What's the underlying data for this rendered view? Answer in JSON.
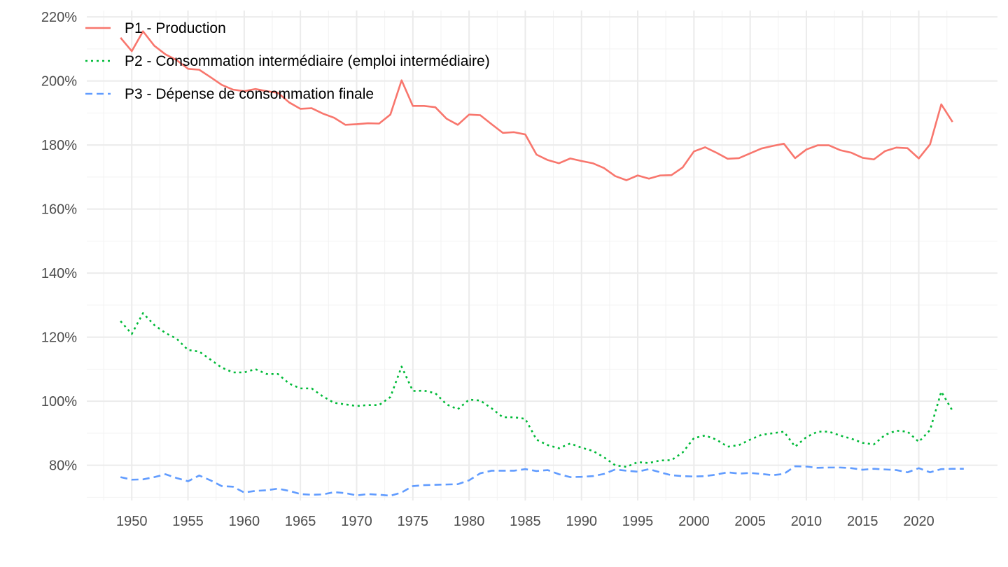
{
  "chart_data": {
    "type": "line",
    "title": "",
    "xlabel": "",
    "ylabel": "",
    "xlim": [
      1946,
      2027
    ],
    "ylim": [
      69,
      222
    ],
    "grid": true,
    "legend_position": "top-left",
    "x_ticks": [
      1950,
      1955,
      1960,
      1965,
      1970,
      1975,
      1980,
      1985,
      1990,
      1995,
      2000,
      2005,
      2010,
      2015,
      2020
    ],
    "x_tick_labels": [
      "1950",
      "1955",
      "1960",
      "1965",
      "1970",
      "1975",
      "1980",
      "1985",
      "1990",
      "1995",
      "2000",
      "2005",
      "2010",
      "2015",
      "2020"
    ],
    "y_ticks": [
      80,
      100,
      120,
      140,
      160,
      180,
      200,
      220
    ],
    "y_tick_labels": [
      "80%",
      "100%",
      "120%",
      "140%",
      "160%",
      "180%",
      "200%",
      "220%"
    ],
    "x": [
      1949,
      1950,
      1951,
      1952,
      1953,
      1954,
      1955,
      1956,
      1957,
      1958,
      1959,
      1960,
      1961,
      1962,
      1963,
      1964,
      1965,
      1966,
      1967,
      1968,
      1969,
      1970,
      1971,
      1972,
      1973,
      1974,
      1975,
      1976,
      1977,
      1978,
      1979,
      1980,
      1981,
      1982,
      1983,
      1984,
      1985,
      1986,
      1987,
      1988,
      1989,
      1990,
      1991,
      1992,
      1993,
      1994,
      1995,
      1996,
      1997,
      1998,
      1999,
      2000,
      2001,
      2002,
      2003,
      2004,
      2005,
      2006,
      2007,
      2008,
      2009,
      2010,
      2011,
      2012,
      2013,
      2014,
      2015,
      2016,
      2017,
      2018,
      2019,
      2020,
      2021,
      2022,
      2023,
      2024
    ],
    "series": [
      {
        "name": "P1 - Production",
        "color": "#F8766D",
        "dash": "solid",
        "values": [
          213.5,
          209.3,
          215.5,
          211.0,
          208.3,
          206.5,
          203.8,
          203.5,
          201.2,
          198.8,
          197.3,
          196.8,
          197.5,
          196.8,
          196.3,
          193.3,
          191.3,
          191.5,
          189.8,
          188.5,
          186.3,
          186.5,
          186.8,
          186.7,
          189.5,
          200.2,
          192.2,
          192.2,
          191.8,
          188.2,
          186.3,
          189.5,
          189.3,
          186.5,
          183.8,
          184.0,
          183.3,
          177.0,
          175.3,
          174.3,
          175.8,
          175.0,
          174.3,
          172.8,
          170.3,
          169.0,
          170.5,
          169.5,
          170.5,
          170.6,
          173.0,
          178.0,
          179.3,
          177.6,
          175.7,
          175.9,
          177.4,
          178.9,
          179.7,
          180.4,
          175.9,
          178.6,
          179.9,
          179.9,
          178.4,
          177.6,
          176.0,
          175.5,
          178.1,
          179.2,
          179.0,
          175.8,
          180.2,
          192.7,
          187.2,
          null
        ]
      },
      {
        "name": "P2 - Consommation intermédiaire (emploi intermédiaire)",
        "color": "#00BA38",
        "dash": "dotted",
        "values": [
          125.0,
          121.0,
          127.5,
          123.8,
          121.3,
          119.5,
          116.0,
          115.5,
          113.0,
          110.5,
          109.0,
          109.0,
          110.0,
          108.5,
          108.5,
          105.5,
          104.0,
          104.0,
          101.5,
          99.5,
          99.0,
          98.5,
          98.8,
          98.8,
          101.3,
          110.8,
          103.2,
          103.3,
          102.5,
          99.0,
          97.5,
          100.5,
          100.2,
          97.8,
          95.0,
          95.0,
          94.5,
          88.0,
          86.3,
          85.3,
          86.8,
          85.5,
          84.5,
          82.5,
          80.0,
          79.5,
          81.0,
          80.7,
          81.5,
          81.6,
          84.0,
          88.5,
          89.3,
          88.0,
          85.8,
          86.3,
          88.0,
          89.5,
          90.0,
          90.5,
          85.8,
          88.8,
          90.5,
          90.5,
          89.3,
          88.3,
          87.0,
          86.5,
          89.5,
          90.8,
          90.5,
          87.3,
          91.0,
          103.0,
          97.0,
          null
        ]
      },
      {
        "name": "P3 - Dépense de consommation finale",
        "color": "#619CFF",
        "dash": "dashed",
        "values": [
          76.3,
          75.5,
          75.6,
          76.3,
          77.2,
          76.0,
          75.0,
          76.8,
          75.3,
          73.5,
          73.3,
          71.5,
          72.0,
          72.2,
          72.7,
          72.0,
          71.0,
          70.8,
          70.9,
          71.6,
          71.3,
          70.6,
          71.0,
          70.8,
          70.5,
          71.5,
          73.5,
          73.8,
          73.9,
          74.0,
          74.1,
          75.3,
          77.5,
          78.3,
          78.3,
          78.3,
          78.8,
          78.2,
          78.5,
          77.2,
          76.3,
          76.4,
          76.6,
          77.3,
          78.7,
          78.3,
          78.0,
          78.8,
          77.8,
          76.9,
          76.6,
          76.5,
          76.6,
          77.1,
          77.8,
          77.4,
          77.6,
          77.3,
          76.9,
          77.3,
          79.7,
          79.6,
          79.2,
          79.3,
          79.3,
          79.1,
          78.6,
          78.9,
          78.7,
          78.5,
          77.8,
          79.1,
          77.8,
          78.8,
          78.9,
          78.9
        ]
      }
    ]
  }
}
